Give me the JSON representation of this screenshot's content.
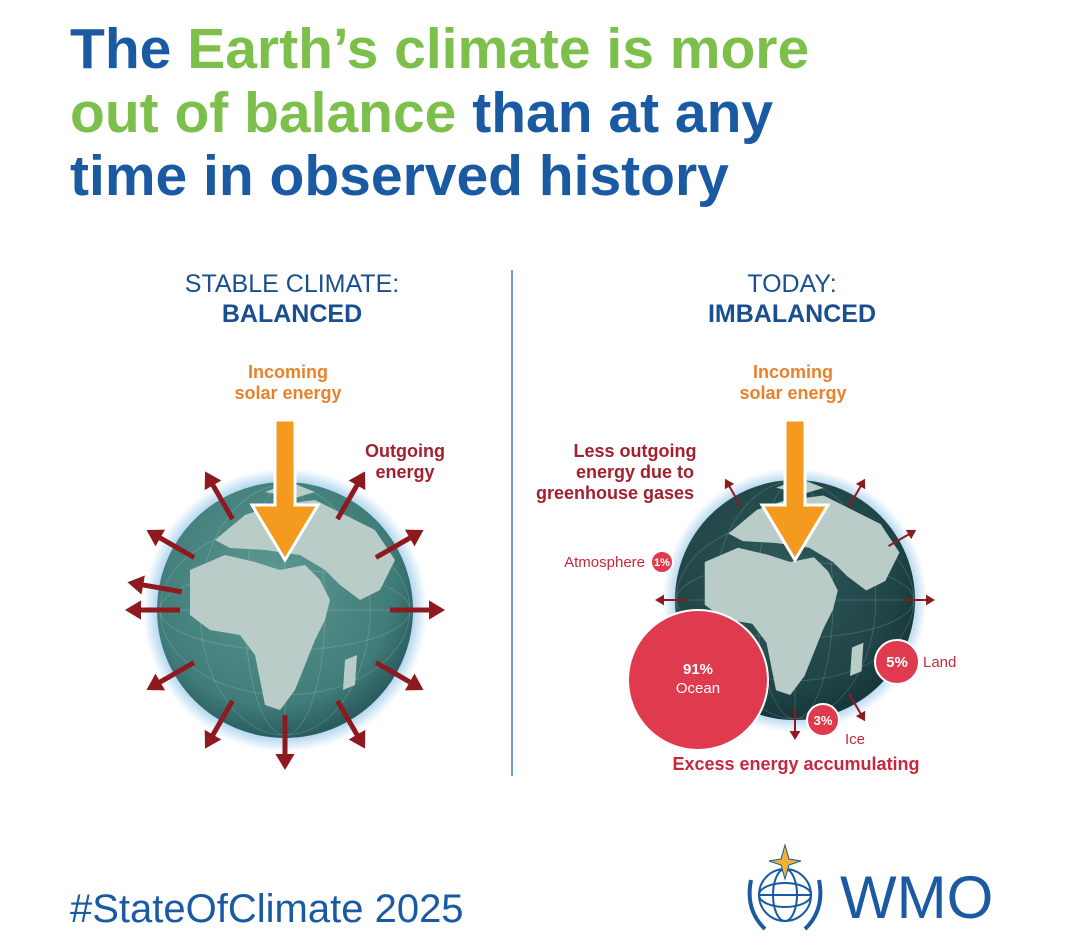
{
  "title_parts": [
    "The",
    "Earth’s climate is more",
    "out of balance",
    "than at any",
    "time in observed history"
  ],
  "left_panel": {
    "heading": "STABLE CLIMATE:",
    "subheading": "BALANCED",
    "incoming": [
      "Incoming",
      "solar energy"
    ],
    "outgoing": [
      "Outgoing",
      "energy"
    ]
  },
  "right_panel": {
    "heading": "TODAY:",
    "subheading": "IMBALANCED",
    "incoming": [
      "Incoming",
      "solar energy"
    ],
    "outgoing": [
      "Less outgoing",
      "energy due to",
      "greenhouse gases"
    ],
    "shares": [
      {
        "name": "Atmosphere",
        "value": "1%"
      },
      {
        "name": "Ocean",
        "value": "91%"
      },
      {
        "name": "Land",
        "value": "5%"
      },
      {
        "name": "Ice",
        "value": "3%"
      }
    ],
    "footer": "Excess energy accumulating"
  },
  "hashtag": "#StateOfClimate 2025",
  "logo": "WMO"
}
